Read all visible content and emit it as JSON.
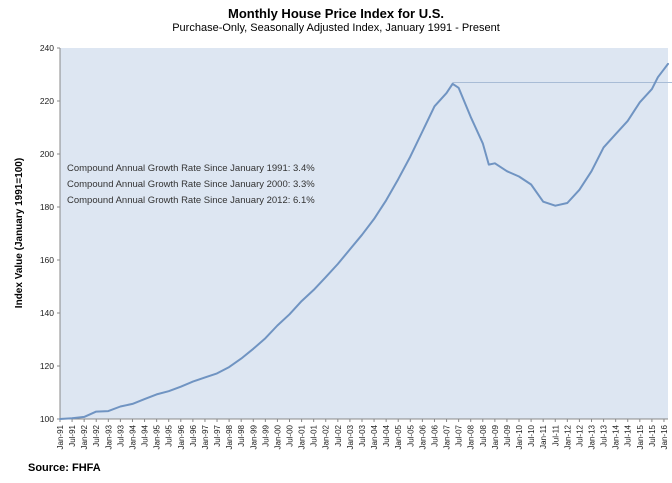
{
  "header": {
    "title": "Monthly House Price Index for U.S.",
    "subtitle": "Purchase-Only, Seasonally Adjusted Index, January 1991 - Present"
  },
  "source": "Source: FHFA",
  "annotations": [
    "Compound Annual Growth Rate Since January 1991:  3.4%",
    "Compound Annual Growth Rate Since January 2000:  3.3%",
    "Compound Annual Growth Rate Since January 2012:  6.1%"
  ],
  "colors": {
    "line": "#7094c2",
    "plot_background": "#dde6f2",
    "reference_line": "#a8bcd6"
  },
  "chart_data": {
    "type": "line",
    "title": "Monthly House Price Index for U.S.",
    "subtitle": "Purchase-Only, Seasonally Adjusted Index, January 1991 - Present",
    "ylabel": "Index Value (January 1991=100)",
    "ylim": [
      100,
      240
    ],
    "yticks": [
      100,
      120,
      140,
      160,
      180,
      200,
      220,
      240
    ],
    "grid": false,
    "legend": "none",
    "x_tick_labels": [
      "Jan-91",
      "Jul-91",
      "Jan-92",
      "Jul-92",
      "Jan-93",
      "Jul-93",
      "Jan-94",
      "Jul-94",
      "Jan-95",
      "Jul-95",
      "Jan-96",
      "Jul-96",
      "Jan-97",
      "Jul-97",
      "Jan-98",
      "Jul-98",
      "Jan-99",
      "Jul-99",
      "Jan-00",
      "Jul-00",
      "Jan-01",
      "Jul-01",
      "Jan-02",
      "Jul-02",
      "Jan-03",
      "Jul-03",
      "Jan-04",
      "Jul-04",
      "Jan-05",
      "Jul-05",
      "Jan-06",
      "Jul-06",
      "Jan-07",
      "Jul-07",
      "Jan-08",
      "Jul-08",
      "Jan-09",
      "Jul-09",
      "Jan-10",
      "Jul-10",
      "Jan-11",
      "Jul-11",
      "Jan-12",
      "Jul-12",
      "Jan-13",
      "Jul-13",
      "Jan-14",
      "Jul-14",
      "Jan-15",
      "Jul-15",
      "Jan-16"
    ],
    "reference_line": {
      "value": 227,
      "from": "Apr-07",
      "to": "Jan-16"
    },
    "x": [
      "Jan-91",
      "Jul-91",
      "Jan-92",
      "Jul-92",
      "Jan-93",
      "Jul-93",
      "Jan-94",
      "Jul-94",
      "Jan-95",
      "Jul-95",
      "Jan-96",
      "Jul-96",
      "Jan-97",
      "Jul-97",
      "Jan-98",
      "Jul-98",
      "Jan-99",
      "Jul-99",
      "Jan-00",
      "Jul-00",
      "Jan-01",
      "Jul-01",
      "Jan-02",
      "Jul-02",
      "Jan-03",
      "Jul-03",
      "Jan-04",
      "Jul-04",
      "Jan-05",
      "Jul-05",
      "Jan-06",
      "Jul-06",
      "Jan-07",
      "Apr-07",
      "Jul-07",
      "Jan-08",
      "Jul-08",
      "Oct-08",
      "Jan-09",
      "Jul-09",
      "Jan-10",
      "Jul-10",
      "Jan-11",
      "Jul-11",
      "Jan-12",
      "Jul-12",
      "Jan-13",
      "Jul-13",
      "Jan-14",
      "Jul-14",
      "Jan-15",
      "Jul-15",
      "Oct-15",
      "Jan-16",
      "Mar-16"
    ],
    "series": [
      {
        "values": [
          100.0,
          100.3,
          100.8,
          102.8,
          103.0,
          104.7,
          105.7,
          107.5,
          109.3,
          110.5,
          112.2,
          114.1,
          115.7,
          117.2,
          119.6,
          122.8,
          126.5,
          130.5,
          135.3,
          139.5,
          144.5,
          148.7,
          153.5,
          158.5,
          164.0,
          169.5,
          175.5,
          182.5,
          190.5,
          199.0,
          208.5,
          218.0,
          223.0,
          226.5,
          225.0,
          214.0,
          204.0,
          196.0,
          196.5,
          193.5,
          191.5,
          188.5,
          182.0,
          180.5,
          181.5,
          186.5,
          193.5,
          202.5,
          207.5,
          212.5,
          219.5,
          224.5,
          229.0,
          232.0,
          234.0
        ]
      }
    ]
  }
}
